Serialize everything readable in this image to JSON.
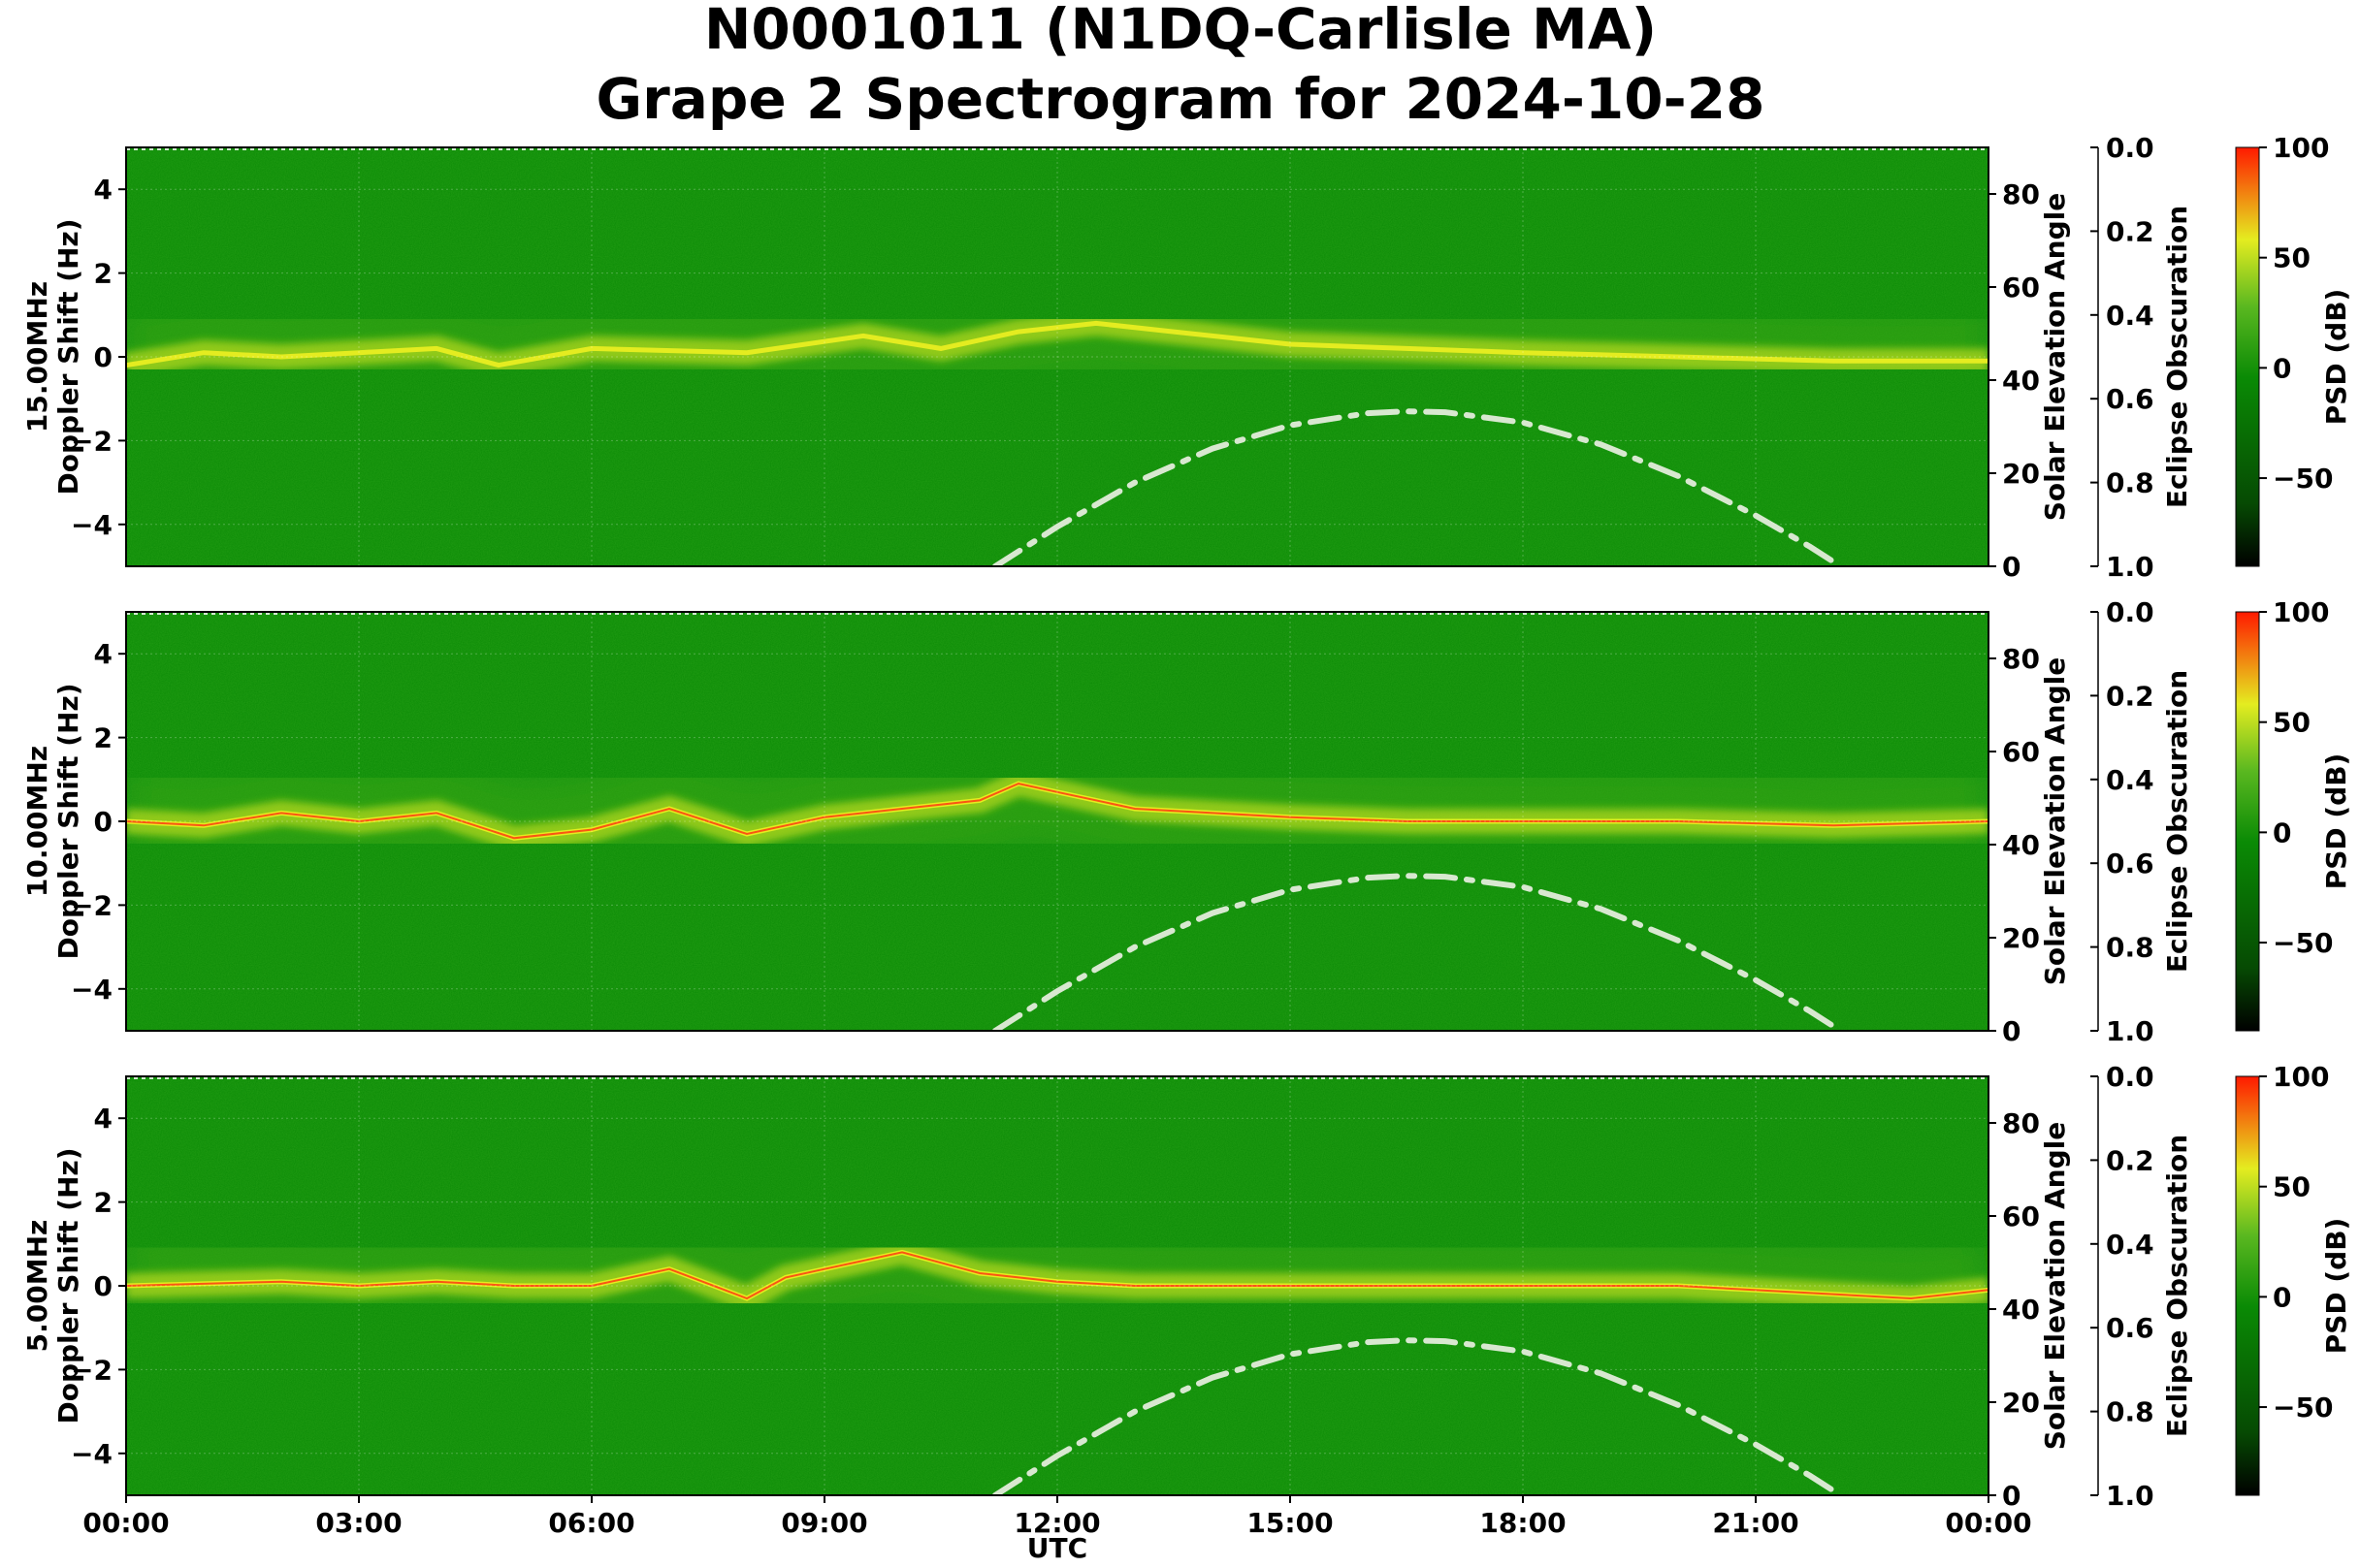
{
  "title": {
    "line1": "N0001011 (N1DQ-Carlisle MA)",
    "line2": "Grape 2 Spectrogram for 2024-10-28"
  },
  "xaxis": {
    "label": "UTC",
    "ticks": [
      "00:00",
      "03:00",
      "06:00",
      "09:00",
      "12:00",
      "15:00",
      "18:00",
      "21:00",
      "00:00"
    ],
    "range_hours": [
      0,
      24
    ]
  },
  "common": {
    "left_ylabel": "Doppler Shift (Hz)",
    "left_ylim": [
      -5,
      5
    ],
    "left_ticks": [
      4,
      2,
      0,
      -2,
      -4
    ],
    "right_ylabel": "Solar Elevation Angle",
    "right_ylim": [
      0,
      90
    ],
    "right_ticks": [
      80,
      60,
      40,
      20,
      0
    ],
    "eclipse_label": "Eclipse Obscuration",
    "eclipse_ticks": [
      "0.0",
      "0.2",
      "0.4",
      "0.6",
      "0.8",
      "1.0"
    ],
    "cbar_label": "PSD (dB)",
    "cbar_ticks": [
      "100",
      "50",
      "0",
      "−50"
    ],
    "cbar_range": [
      -90,
      100
    ]
  },
  "colors": {
    "background_green": "#0a8a05",
    "mid_green": "#3aa818",
    "yellow": "#e4ec20",
    "red": "#ff3010",
    "solar_curve": "#d8e8d0"
  },
  "chart_data": [
    {
      "type": "heatmap",
      "name": "15.00MHz",
      "ylabel_prefix": "15.00MHz",
      "doppler_trace_hz": [
        [
          0,
          -0.2
        ],
        [
          1,
          0.1
        ],
        [
          2,
          0.0
        ],
        [
          3,
          0.1
        ],
        [
          4,
          0.2
        ],
        [
          4.8,
          -0.2
        ],
        [
          6,
          0.2
        ],
        [
          8,
          0.1
        ],
        [
          9.5,
          0.5
        ],
        [
          10.5,
          0.2
        ],
        [
          11.5,
          0.6
        ],
        [
          12.5,
          0.8
        ],
        [
          13.5,
          0.6
        ],
        [
          15,
          0.3
        ],
        [
          16.5,
          0.2
        ],
        [
          18,
          0.1
        ],
        [
          20,
          0.0
        ],
        [
          22,
          -0.1
        ],
        [
          24,
          -0.1
        ]
      ],
      "solar_elevation_deg": [
        [
          11.2,
          0
        ],
        [
          12,
          8.5
        ],
        [
          13,
          18
        ],
        [
          14,
          25.3
        ],
        [
          15,
          30.3
        ],
        [
          16,
          32.9
        ],
        [
          16.5,
          33.3
        ],
        [
          17,
          33.1
        ],
        [
          18,
          30.9
        ],
        [
          19,
          26.2
        ],
        [
          20,
          19.4
        ],
        [
          21,
          10.9
        ],
        [
          21.7,
          4.2
        ],
        [
          22,
          1
        ]
      ]
    },
    {
      "type": "heatmap",
      "name": "10.00MHz",
      "ylabel_prefix": "10.00MHz",
      "doppler_trace_hz": [
        [
          0,
          0.0
        ],
        [
          1,
          -0.1
        ],
        [
          2,
          0.2
        ],
        [
          3,
          0.0
        ],
        [
          4,
          0.2
        ],
        [
          5,
          -0.4
        ],
        [
          6,
          -0.2
        ],
        [
          7,
          0.3
        ],
        [
          8,
          -0.3
        ],
        [
          9,
          0.1
        ],
        [
          10,
          0.3
        ],
        [
          11,
          0.5
        ],
        [
          11.5,
          0.9
        ],
        [
          12,
          0.7
        ],
        [
          13,
          0.3
        ],
        [
          15,
          0.1
        ],
        [
          16.5,
          0.0
        ],
        [
          18,
          0.0
        ],
        [
          20,
          0.0
        ],
        [
          22,
          -0.1
        ],
        [
          24,
          0.0
        ]
      ],
      "solar_elevation_deg": [
        [
          11.2,
          0
        ],
        [
          12,
          8.5
        ],
        [
          13,
          18
        ],
        [
          14,
          25.3
        ],
        [
          15,
          30.3
        ],
        [
          16,
          32.9
        ],
        [
          16.5,
          33.3
        ],
        [
          17,
          33.1
        ],
        [
          18,
          30.9
        ],
        [
          19,
          26.2
        ],
        [
          20,
          19.4
        ],
        [
          21,
          10.9
        ],
        [
          21.7,
          4.2
        ],
        [
          22,
          1
        ]
      ]
    },
    {
      "type": "heatmap",
      "name": "5.00MHz",
      "ylabel_prefix": "5.00MHz",
      "doppler_trace_hz": [
        [
          0,
          0.0
        ],
        [
          2,
          0.1
        ],
        [
          3,
          0.0
        ],
        [
          4,
          0.1
        ],
        [
          5,
          0.0
        ],
        [
          6,
          0.0
        ],
        [
          7,
          0.4
        ],
        [
          8,
          -0.3
        ],
        [
          8.5,
          0.2
        ],
        [
          9,
          0.4
        ],
        [
          10,
          0.8
        ],
        [
          11,
          0.3
        ],
        [
          12,
          0.1
        ],
        [
          13,
          0.0
        ],
        [
          16,
          0.0
        ],
        [
          20,
          0.0
        ],
        [
          23,
          -0.3
        ],
        [
          24,
          -0.1
        ]
      ],
      "solar_elevation_deg": [
        [
          11.2,
          0
        ],
        [
          12,
          8.5
        ],
        [
          13,
          18
        ],
        [
          14,
          25.3
        ],
        [
          15,
          30.3
        ],
        [
          16,
          32.9
        ],
        [
          16.5,
          33.3
        ],
        [
          17,
          33.1
        ],
        [
          18,
          30.9
        ],
        [
          19,
          26.2
        ],
        [
          20,
          19.4
        ],
        [
          21,
          10.9
        ],
        [
          21.7,
          4.2
        ],
        [
          22,
          1
        ]
      ]
    }
  ]
}
